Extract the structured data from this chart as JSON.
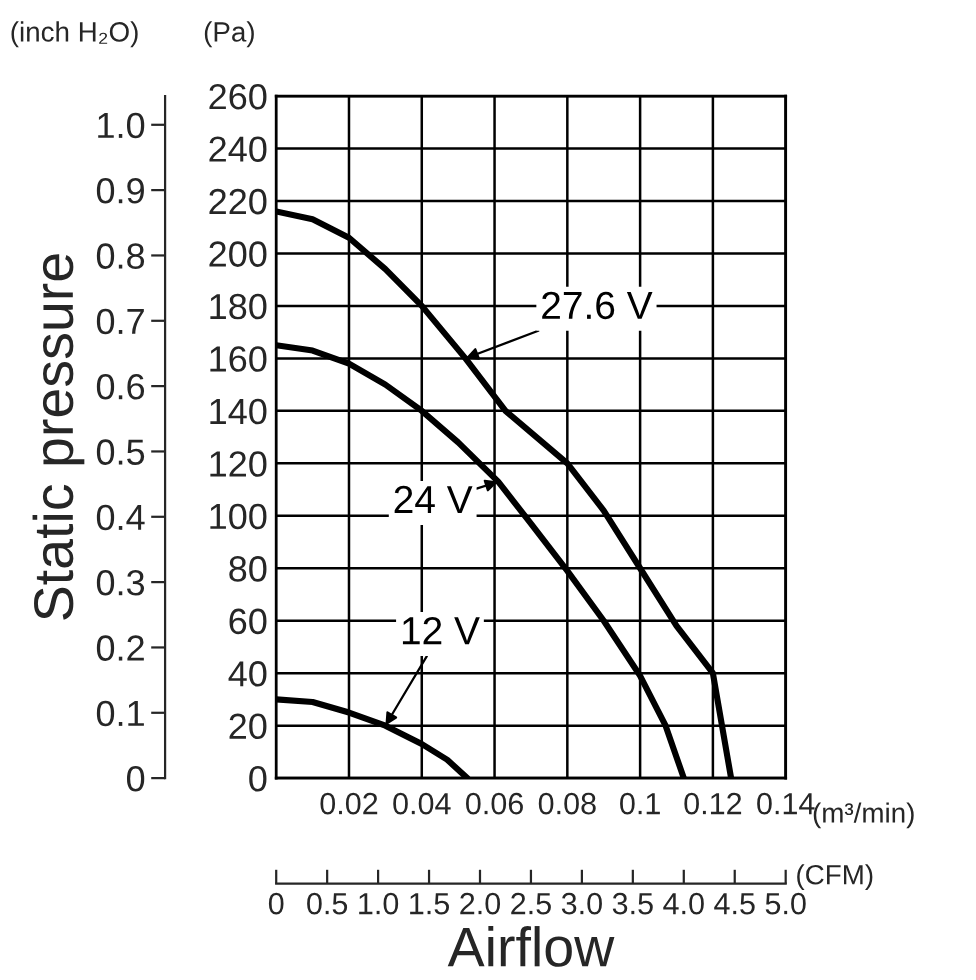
{
  "chart_data": {
    "type": "line",
    "xlabel": "Airflow",
    "ylabel": "Static pressure",
    "x2label": "(CFM)",
    "series": [
      {
        "name": "27.6 V",
        "color": "#000000",
        "axis": "y2",
        "x": [
          0,
          0.01,
          0.02,
          0.03,
          0.04,
          0.052,
          0.063,
          0.08,
          0.09,
          0.1,
          0.11,
          0.12,
          0.125
        ],
        "values": [
          216,
          213,
          206,
          194,
          180,
          160,
          140,
          120,
          102,
          80,
          58,
          40,
          0
        ]
      },
      {
        "name": "24 V",
        "color": "#000000",
        "axis": "y2",
        "x": [
          0,
          0.01,
          0.02,
          0.03,
          0.04,
          0.05,
          0.061,
          0.07,
          0.08,
          0.09,
          0.1,
          0.107,
          0.112
        ],
        "values": [
          165,
          163,
          158,
          150,
          140,
          128,
          113,
          97,
          79,
          60,
          39,
          20,
          0
        ]
      },
      {
        "name": "12 V",
        "color": "#000000",
        "axis": "y2",
        "x": [
          0,
          0.01,
          0.02,
          0.03,
          0.04,
          0.047,
          0.0525
        ],
        "values": [
          30,
          29,
          25,
          20,
          13,
          7,
          0
        ]
      }
    ],
    "xlim": [
      0,
      0.14
    ],
    "xticks": [
      0.02,
      0.04,
      0.06,
      0.08,
      0.1,
      0.12,
      0.14
    ],
    "y2lim": [
      0,
      260
    ],
    "y2ticks": [
      0,
      20,
      40,
      60,
      80,
      100,
      120,
      140,
      160,
      180,
      200,
      220,
      240,
      260
    ],
    "ylim": [
      0,
      1.044
    ],
    "yticks": [
      0,
      0.1,
      0.2,
      0.3,
      0.4,
      0.5,
      0.6,
      0.7,
      0.8,
      0.9,
      {
        "value": 1.0,
        "label": "1.0"
      }
    ],
    "x2lim": [
      0,
      5.0
    ],
    "x2ticks": [
      0,
      0.5,
      {
        "value": 1.0,
        "label": "1.0"
      },
      1.5,
      {
        "value": 2.0,
        "label": "2.0"
      },
      2.5,
      {
        "value": 3.0,
        "label": "3.0"
      },
      3.5,
      {
        "value": 4.0,
        "label": "4.0"
      },
      4.5,
      {
        "value": 5.0,
        "label": "5.0"
      }
    ],
    "grid": true,
    "marker": "none",
    "line_style": "solid",
    "annotations": [
      "(inch H₂O)",
      "(Pa)",
      "(m³/min)"
    ]
  }
}
